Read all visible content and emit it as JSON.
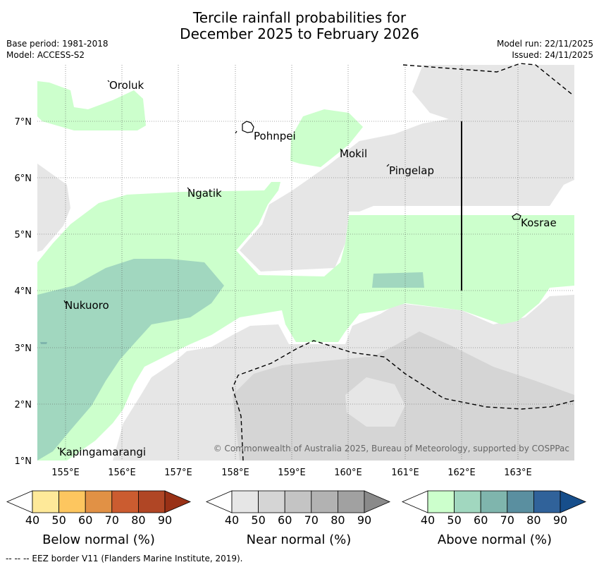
{
  "title": {
    "line1": "Tercile rainfall probabilities for",
    "line2": "December 2025 to February 2026"
  },
  "meta": {
    "base_period": "Base period: 1981-2018",
    "model": "Model: ACCESS-S2",
    "model_run": "Model run: 22/11/2025",
    "issued": "Issued: 24/11/2025"
  },
  "map": {
    "lon_labels": [
      "155°E",
      "156°E",
      "157°E",
      "158°E",
      "159°E",
      "160°E",
      "161°E",
      "162°E",
      "163°E"
    ],
    "lat_labels": [
      "1°N",
      "2°N",
      "3°N",
      "4°N",
      "5°N",
      "6°N",
      "7°N"
    ],
    "places": {
      "oroluk": "Oroluk",
      "pohnpei": "Pohnpei",
      "mokil": "Mokil",
      "pingelap": "Pingelap",
      "ngatik": "Ngatik",
      "kosrae": "Kosrae",
      "nukuoro": "Nukuoro",
      "kapingamarangi": "Kapingamarangi"
    },
    "copyright": "© Commonwealth of Australia 2025, Bureau of Meteorology, supported by COSPPac"
  },
  "colorbars": {
    "ticks": [
      "40",
      "50",
      "60",
      "70",
      "80",
      "90"
    ],
    "below": {
      "label": "Below normal (%)",
      "colors": [
        "#ffffff",
        "#fee999",
        "#fdc65f",
        "#e19145",
        "#cb5c30",
        "#b04625",
        "#993116"
      ]
    },
    "near": {
      "label": "Near normal (%)",
      "colors": [
        "#ffffff",
        "#e6e6e6",
        "#d5d5d5",
        "#c4c4c4",
        "#b2b2b2",
        "#a1a1a1",
        "#8a8a8a"
      ]
    },
    "above": {
      "label": "Above normal (%)",
      "colors": [
        "#ffffff",
        "#ccffcc",
        "#a1d7bf",
        "#7fb5ad",
        "#5a8fa0",
        "#30629a",
        "#164e8b"
      ]
    }
  },
  "footer": "--  --  -- EEZ border V11 (Flanders Marine Institute, 2019)."
}
